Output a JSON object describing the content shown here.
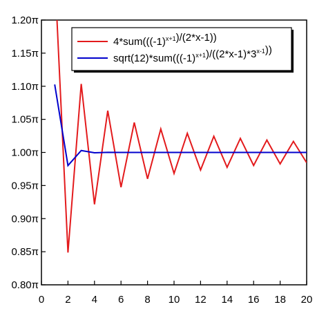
{
  "chart_data": {
    "type": "line",
    "x": [
      1,
      2,
      3,
      4,
      5,
      6,
      7,
      8,
      9,
      10,
      11,
      12,
      13,
      14,
      15,
      16,
      17,
      18,
      19,
      20
    ],
    "series": [
      {
        "name": "4*sum(((-1)^(x+1))/(2*x-1))",
        "legend": {
          "prefix": "4*sum(((-1)",
          "sup": "x+1",
          "suffix": ")/(2*x-1))"
        },
        "color": "#e31a1c",
        "values": [
          1.2732,
          0.8488,
          1.1035,
          0.9216,
          1.0631,
          0.9474,
          1.0452,
          0.9601,
          1.0354,
          0.9682,
          1.0289,
          0.9735,
          1.0244,
          0.9775,
          1.0212,
          0.9803,
          1.0187,
          0.9827,
          1.0167,
          0.9845
        ]
      },
      {
        "name": "sqrt(12)*sum(((-1)^(x+1))/((2*x-1)*3^(x-1)))",
        "legend": {
          "prefix": "sqrt(12)*sum(((-1)",
          "sup": "x+1",
          "mid": ")/((2*x-1)*3",
          "sup2": "x-1",
          "suffix": "))"
        },
        "color": "#0000cc",
        "values": [
          1.1027,
          0.9802,
          1.0029,
          0.9995,
          1.0001,
          1.0,
          1.0,
          1.0,
          1.0,
          1.0,
          1.0,
          1.0,
          1.0,
          1.0,
          1.0,
          1.0,
          1.0,
          1.0,
          1.0,
          1.0
        ]
      }
    ],
    "xlim": [
      0,
      20
    ],
    "ylim": [
      0.8,
      1.2
    ],
    "x_ticks": [
      "0",
      "2",
      "4",
      "6",
      "8",
      "10",
      "12",
      "14",
      "16",
      "18",
      "20"
    ],
    "y_ticks": [
      "0.80π",
      "0.85π",
      "0.90π",
      "0.95π",
      "1.00π",
      "1.05π",
      "1.10π",
      "1.15π",
      "1.20π"
    ],
    "grid": false,
    "legend_position": "top-right",
    "title": "",
    "xlabel": "",
    "ylabel": ""
  }
}
